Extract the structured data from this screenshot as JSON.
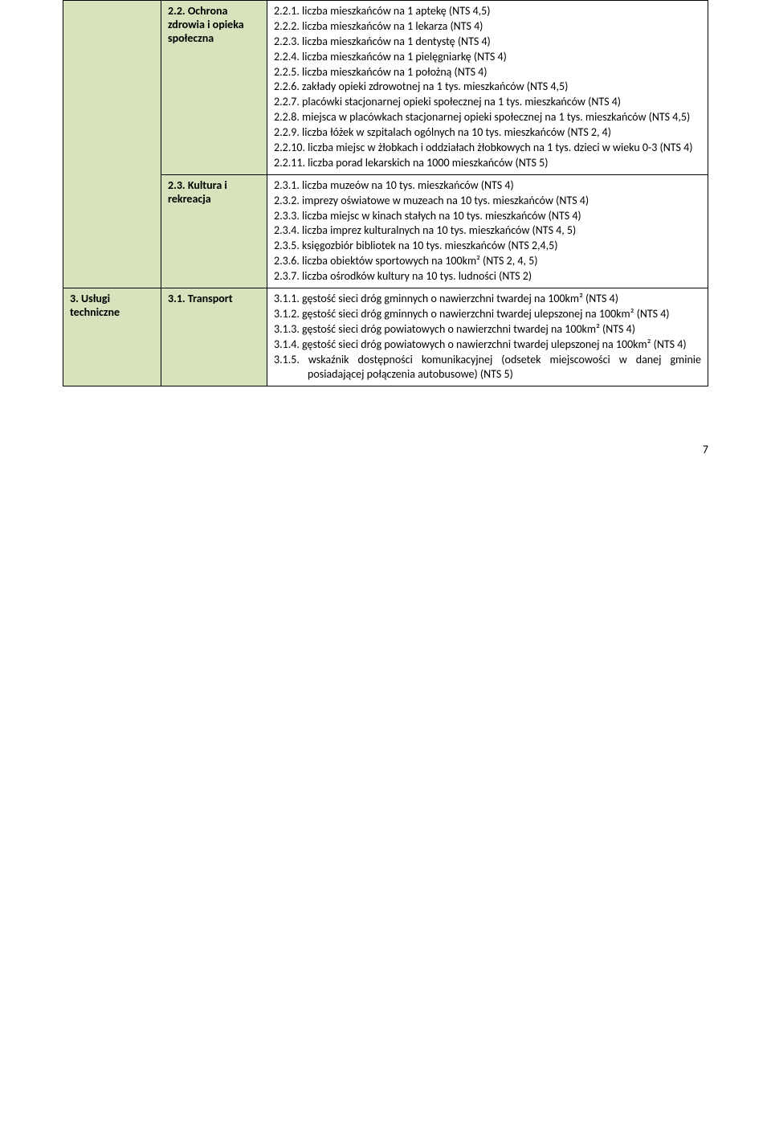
{
  "table": {
    "row1": {
      "col2_title": "2.2. Ochrona zdrowia i opieka społeczna",
      "items": [
        "2.2.1. liczba mieszkańców na 1 aptekę (NTS 4,5)",
        "2.2.2. liczba mieszkańców na 1 lekarza (NTS 4)",
        "2.2.3. liczba mieszkańców na 1 dentystę (NTS 4)",
        "2.2.4. liczba mieszkańców na 1 pielęgniarkę (NTS 4)",
        "2.2.5. liczba mieszkańców na 1 położną (NTS 4)",
        "2.2.6. zakłady opieki zdrowotnej na 1 tys. mieszkańców (NTS 4,5)",
        "2.2.7. placówki stacjonarnej opieki społecznej na 1 tys. mieszkańców (NTS 4)",
        "2.2.8. miejsca w placówkach stacjonarnej opieki społecznej na 1 tys. mieszkańców (NTS 4,5)",
        "2.2.9. liczba łóżek w szpitalach ogólnych na 10 tys. mieszkańców (NTS 2, 4)",
        "2.2.10. liczba miejsc w żłobkach i oddziałach żłobkowych na 1 tys. dzieci w wieku 0-3 (NTS 4)",
        "2.2.11. liczba porad lekarskich na 1000 mieszkańców (NTS 5)"
      ]
    },
    "row2": {
      "col2_title": "2.3. Kultura i rekreacja",
      "items": [
        "2.3.1. liczba muzeów na 10 tys. mieszkańców (NTS 4)",
        "2.3.2. imprezy oświatowe w muzeach na 10 tys. mieszkańców (NTS 4)",
        "2.3.3. liczba miejsc w kinach stałych na 10 tys. mieszkańców (NTS 4)",
        "2.3.4. liczba imprez kulturalnych na 10 tys. mieszkańców (NTS 4, 5)",
        "2.3.5. księgozbiór bibliotek na 10 tys. mieszkańców (NTS 2,4,5)",
        "2.3.6. liczba obiektów sportowych na 100km² (NTS 2, 4, 5)",
        "2.3.7. liczba ośrodków kultury na 10 tys. ludności (NTS 2)"
      ]
    },
    "row3": {
      "col1_title": "3. Usługi techniczne",
      "col2_title": "3.1. Transport",
      "items": [
        "3.1.1. gęstość sieci dróg gminnych o nawierzchni twardej na 100km² (NTS 4)",
        "3.1.2. gęstość sieci dróg gminnych o nawierzchni twardej ulepszonej na 100km² (NTS 4)",
        "3.1.3. gęstość sieci dróg powiatowych o nawierzchni twardej na 100km² (NTS 4)",
        "3.1.4. gęstość sieci dróg powiatowych o nawierzchni twardej ulepszonej na 100km² (NTS 4)",
        "3.1.5. wskaźnik dostępności komunikacyjnej (odsetek miejscowości w danej gminie posiadającej połączenia autobusowe) (NTS 5)"
      ]
    }
  },
  "page_number": "7"
}
